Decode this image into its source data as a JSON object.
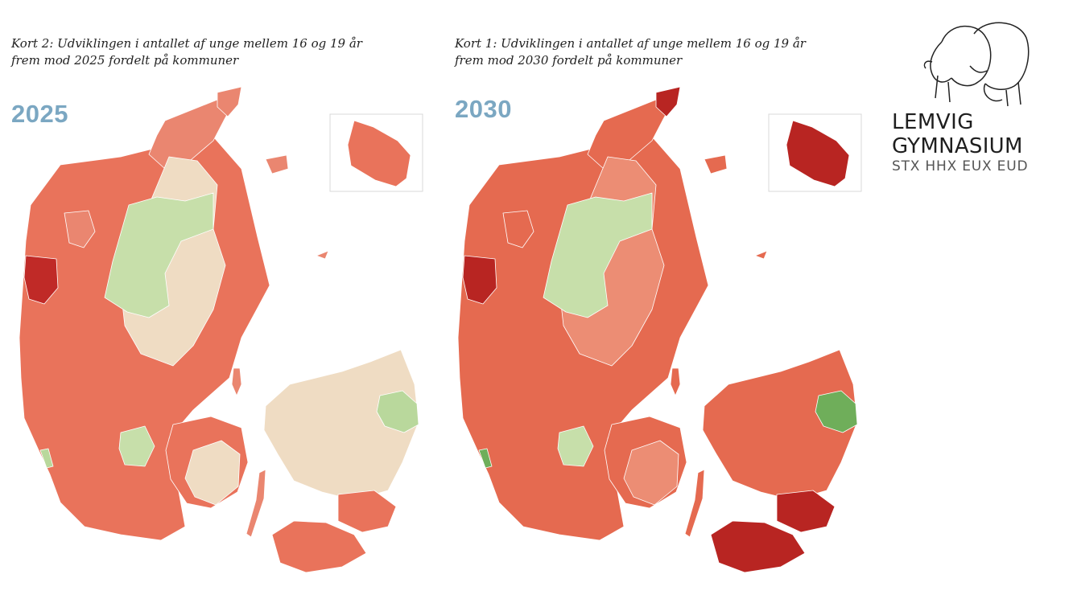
{
  "panels": [
    {
      "caption_line1": "Kort 2: Udviklingen i antallet af unge mellem 16 og 19 år",
      "caption_line2": "frem mod 2025 fordelt på kommuner",
      "year": "2025",
      "colors": {
        "jutland": "#e9735b",
        "north": "#ea8670",
        "tip": "#ea8670",
        "central_beige": "#efdcc3",
        "central_green": "#c7dfaa",
        "west_dark": "#c02a27",
        "islands": "#ea8670",
        "funen": "#e9735b",
        "funen_beige": "#efdcc3",
        "zealand": "#efdcc3",
        "zealand_south": "#e9735b",
        "lolland": "#e9735b",
        "copenhagen": "#b9d89c",
        "bornholm": "#e9735b"
      }
    },
    {
      "caption_line1": "Kort 1: Udviklingen i antallet af unge mellem 16 og 19 år",
      "caption_line2": "frem mod 2030 fordelt på kommuner",
      "year": "2030",
      "colors": {
        "jutland": "#e56a50",
        "north": "#e56a50",
        "tip": "#b82522",
        "central_beige": "#ec8d74",
        "central_green": "#c7dfaa",
        "west_dark": "#b82522",
        "islands": "#e56a50",
        "funen": "#e56a50",
        "funen_beige": "#ec8d74",
        "zealand": "#e56a50",
        "zealand_south": "#b82522",
        "lolland": "#b82522",
        "copenhagen": "#6fae5a",
        "bornholm": "#b82522"
      }
    }
  ],
  "logo": {
    "line1": "LEMVIG",
    "line2": "GYMNASIUM",
    "line3": "STX HHX EUX EUD"
  }
}
